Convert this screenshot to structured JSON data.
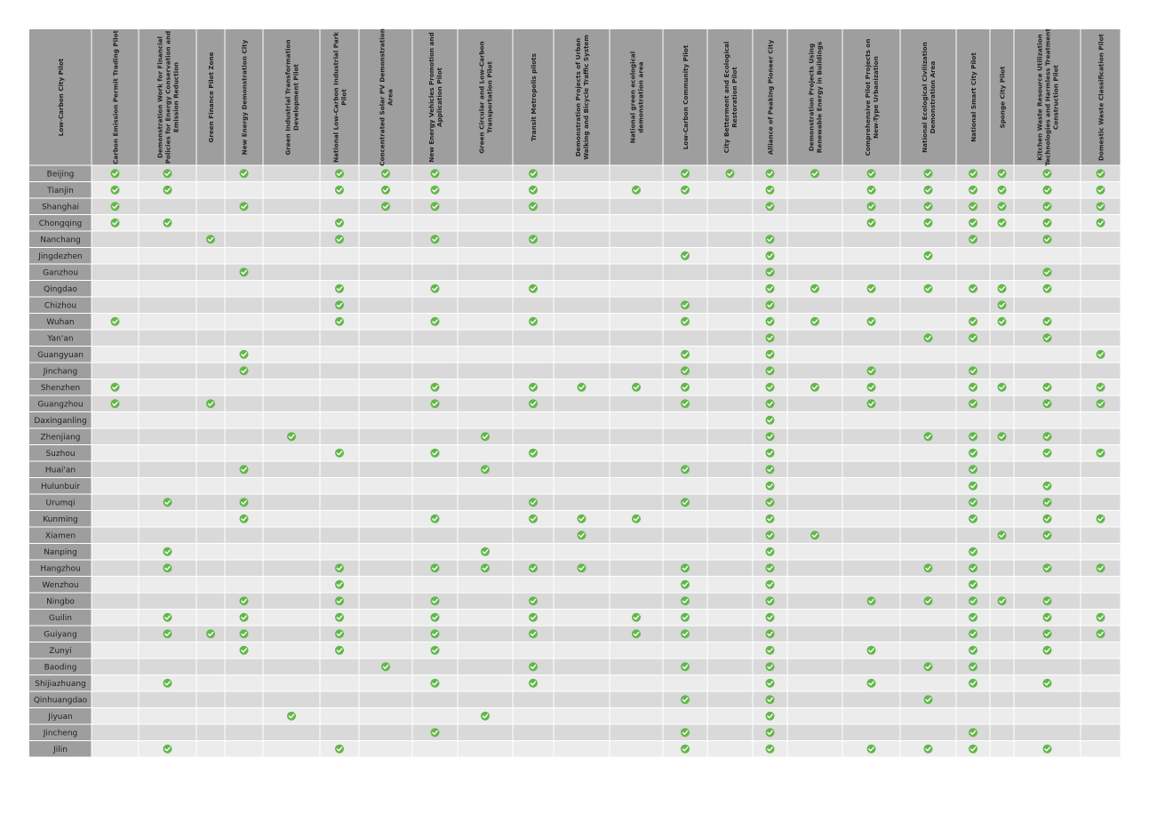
{
  "colors": {
    "header_bg": "#9e9e9e",
    "row_label_bg": "#9e9e9e",
    "band_light": "#ececec",
    "band_dark": "#d9d9d9",
    "check": "#62b749",
    "check_mark": "#ffffff"
  },
  "chart_data": {
    "type": "table",
    "corner_label": "Low-Carbon City Pilot",
    "columns": [
      "Carbon Emission Permit Trading Pilot",
      "Demonstration Work for Financial Policies for Energy Conservation and Emission Reduction",
      "Green Finance Pilot Zone",
      "New Energy Demonstration City",
      "Green Industrial Transformation Development Pilot",
      "National Low-Carbon Industrial Park Pilot",
      "Concentrated Solar PV Demonstration Area",
      "New Energy Vehicles Promotion and Application Pilot",
      "Green Circular and Low-Carbon Transportation Pilot",
      "Transit Metropolis pilots",
      "Demonstration Projects of Urban Walking and Bicycle Traffic System",
      "National green ecological demonstration area",
      "Low-Carbon Community Pilot",
      "City Betterment and Ecological Restoration Pilot",
      "Alliance of Peaking Pioneer City",
      "Demonstration Projects Using Renewable Energy in Buildings",
      "Comprehensive Pilot Projects on New-Type Urbanization",
      "National Ecological Civilization Demonstration Area",
      "National Smart City Pilot",
      "Sponge City Pilot",
      "Kitchen Waste Resource Utilization Technologies and Harmless Treatment Construction Pilot",
      "Domestic Waste Classification Pilot"
    ],
    "rows": [
      {
        "city": "Beijing",
        "checks": [
          0,
          1,
          3,
          5,
          6,
          7,
          9,
          12,
          13,
          14,
          15,
          16,
          17,
          18,
          19,
          20,
          21
        ]
      },
      {
        "city": "Tianjin",
        "checks": [
          0,
          1,
          5,
          6,
          7,
          9,
          11,
          12,
          14,
          16,
          17,
          18,
          19,
          20,
          21
        ]
      },
      {
        "city": "Shanghai",
        "checks": [
          0,
          3,
          6,
          7,
          9,
          14,
          16,
          17,
          18,
          19,
          20,
          21
        ]
      },
      {
        "city": "Chongqing",
        "checks": [
          0,
          1,
          5,
          16,
          17,
          18,
          19,
          20,
          21
        ]
      },
      {
        "city": "Nanchang",
        "checks": [
          2,
          5,
          7,
          9,
          14,
          18,
          20
        ]
      },
      {
        "city": "Jingdezhen",
        "checks": [
          12,
          14,
          17
        ]
      },
      {
        "city": "Ganzhou",
        "checks": [
          3,
          14,
          20
        ]
      },
      {
        "city": "Qingdao",
        "checks": [
          5,
          7,
          9,
          14,
          15,
          16,
          17,
          18,
          19,
          20
        ]
      },
      {
        "city": "Chizhou",
        "checks": [
          5,
          12,
          14,
          19
        ]
      },
      {
        "city": "Wuhan",
        "checks": [
          0,
          5,
          7,
          9,
          12,
          14,
          15,
          16,
          18,
          19,
          20
        ]
      },
      {
        "city": "Yan'an",
        "checks": [
          14,
          17,
          18,
          20
        ]
      },
      {
        "city": "Guangyuan",
        "checks": [
          3,
          12,
          14,
          21
        ]
      },
      {
        "city": "Jinchang",
        "checks": [
          3,
          12,
          14,
          16,
          18
        ]
      },
      {
        "city": "Shenzhen",
        "checks": [
          0,
          7,
          9,
          10,
          11,
          12,
          14,
          15,
          16,
          18,
          19,
          20,
          21
        ]
      },
      {
        "city": "Guangzhou",
        "checks": [
          0,
          2,
          7,
          9,
          12,
          14,
          16,
          18,
          20,
          21
        ]
      },
      {
        "city": "Daxinganling",
        "checks": [
          14
        ]
      },
      {
        "city": "Zhenjiang",
        "checks": [
          4,
          8,
          14,
          17,
          18,
          19,
          20
        ]
      },
      {
        "city": "Suzhou",
        "checks": [
          5,
          7,
          9,
          14,
          18,
          20,
          21
        ]
      },
      {
        "city": "Huai'an",
        "checks": [
          3,
          8,
          12,
          14,
          18
        ]
      },
      {
        "city": "Hulunbuir",
        "checks": [
          14,
          18,
          20
        ]
      },
      {
        "city": "Urumqi",
        "checks": [
          1,
          3,
          9,
          12,
          14,
          18,
          20
        ]
      },
      {
        "city": "Kunming",
        "checks": [
          3,
          7,
          9,
          10,
          11,
          14,
          18,
          20,
          21
        ]
      },
      {
        "city": "Xiamen",
        "checks": [
          10,
          14,
          15,
          19,
          20
        ]
      },
      {
        "city": "Nanping",
        "checks": [
          1,
          8,
          14,
          18
        ]
      },
      {
        "city": "Hangzhou",
        "checks": [
          1,
          5,
          7,
          8,
          9,
          10,
          12,
          14,
          17,
          18,
          20,
          21
        ]
      },
      {
        "city": "Wenzhou",
        "checks": [
          5,
          12,
          14,
          18
        ]
      },
      {
        "city": "Ningbo",
        "checks": [
          3,
          5,
          7,
          9,
          12,
          14,
          16,
          17,
          18,
          19,
          20
        ]
      },
      {
        "city": "Guilin",
        "checks": [
          1,
          3,
          5,
          7,
          9,
          11,
          12,
          14,
          18,
          20,
          21
        ]
      },
      {
        "city": "Guiyang",
        "checks": [
          1,
          2,
          3,
          5,
          7,
          9,
          11,
          12,
          14,
          18,
          20,
          21
        ]
      },
      {
        "city": "Zunyi",
        "checks": [
          3,
          5,
          7,
          14,
          16,
          18,
          20
        ]
      },
      {
        "city": "Baoding",
        "checks": [
          6,
          9,
          12,
          14,
          17,
          18
        ]
      },
      {
        "city": "Shijiazhuang",
        "checks": [
          1,
          7,
          9,
          14,
          16,
          18,
          20
        ]
      },
      {
        "city": "Qinhuangdao",
        "checks": [
          12,
          14,
          17
        ]
      },
      {
        "city": "Jiyuan",
        "checks": [
          4,
          8,
          14
        ]
      },
      {
        "city": "Jincheng",
        "checks": [
          7,
          12,
          14,
          18
        ]
      },
      {
        "city": "Jilin",
        "checks": [
          1,
          5,
          12,
          14,
          16,
          17,
          18,
          20
        ]
      }
    ]
  }
}
